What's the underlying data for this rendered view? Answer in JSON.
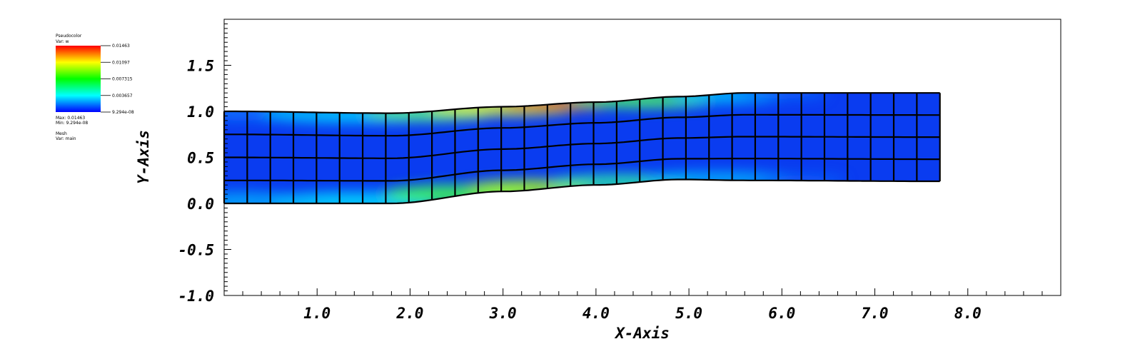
{
  "legend": {
    "plot_type": "Pseudocolor",
    "var_label": "Var: w",
    "max_label": "Max: 0.01463",
    "min_label": "Min: 9.294e-08",
    "mesh_label": "Mesh",
    "mesh_var_label": "Var: main",
    "colors": [
      "#ff0000",
      "#ffff00",
      "#00ff00",
      "#00ffff",
      "#0000ff"
    ]
  },
  "chart_data": {
    "type": "heatmap",
    "xlabel": "X-Axis",
    "ylabel": "Y-Axis",
    "xlim": [
      0.0,
      9.0
    ],
    "ylim": [
      -1.0,
      2.0
    ],
    "x_ticks": [
      "1.0",
      "2.0",
      "3.0",
      "4.0",
      "5.0",
      "6.0",
      "7.0",
      "8.0"
    ],
    "y_ticks": [
      "-1.0",
      "-0.5",
      "0.0",
      "0.5",
      "1.0",
      "1.5"
    ],
    "colorbar": {
      "var": "w",
      "min": 9.294e-08,
      "max": 0.01463,
      "tick_labels": [
        "0.01463",
        "0.01097",
        "0.007315",
        "0.003657",
        "9.294e-08"
      ]
    },
    "mesh": {
      "name": "main",
      "columns": 31,
      "rows": 4,
      "x_range": [
        0.0,
        7.7
      ],
      "bottom_edge": [
        [
          0.0,
          0.0
        ],
        [
          1.8,
          0.0
        ],
        [
          3.0,
          0.13
        ],
        [
          4.0,
          0.2
        ],
        [
          4.9,
          0.26
        ],
        [
          5.6,
          0.25
        ],
        [
          7.7,
          0.24
        ]
      ],
      "top_edge": [
        [
          0.0,
          1.0
        ],
        [
          1.8,
          0.98
        ],
        [
          3.0,
          1.05
        ],
        [
          4.0,
          1.1
        ],
        [
          4.9,
          1.16
        ],
        [
          5.6,
          1.2
        ],
        [
          7.7,
          1.2
        ]
      ]
    }
  }
}
